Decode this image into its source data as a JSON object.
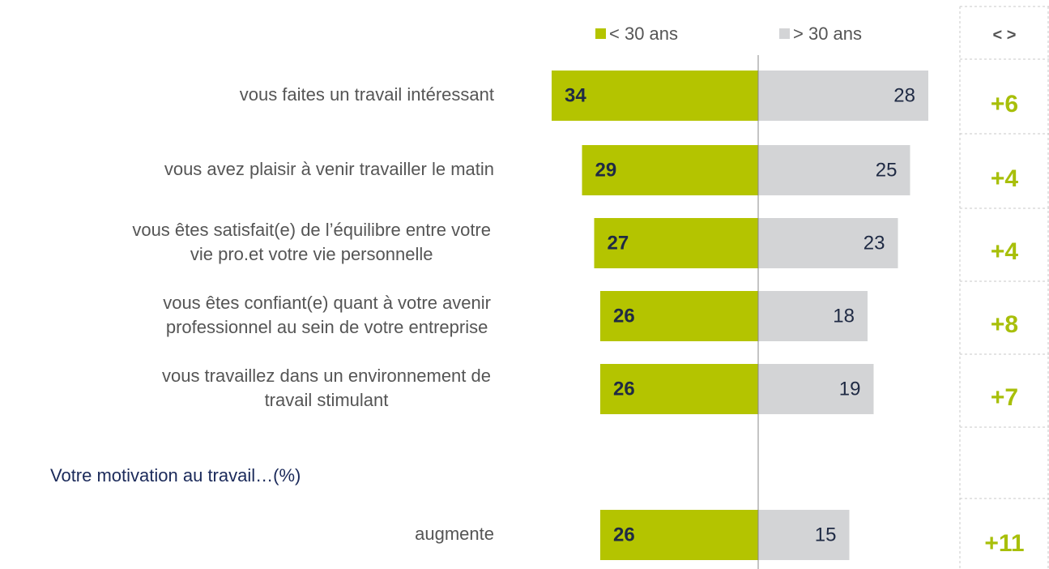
{
  "chart_data": {
    "type": "diverging-bar",
    "categories": [
      [
        "vous faites un travail intéressant"
      ],
      [
        "vous avez plaisir à venir travailler le matin"
      ],
      [
        "vous êtes satisfait(e) de l’équilibre entre votre",
        "vie pro.et votre vie personnelle"
      ],
      [
        "vous êtes confiant(e) quant à votre avenir",
        "professionnel au sein de votre entreprise"
      ],
      [
        "vous travaillez dans un environnement de",
        "travail stimulant"
      ],
      [
        "augmente"
      ]
    ],
    "section_label": "Votre motivation au travail…(%)",
    "series": [
      {
        "name": "< 30 ans",
        "color": "#b4c400",
        "values": [
          34,
          29,
          27,
          26,
          26,
          26
        ]
      },
      {
        "name": "> 30 ans",
        "color": "#d3d4d6",
        "values": [
          28,
          25,
          23,
          18,
          19,
          15
        ]
      }
    ],
    "difference": {
      "header": "< >",
      "color": "#a8bf0a",
      "values": [
        6,
        4,
        4,
        8,
        7,
        11
      ],
      "value_labels": [
        "+6",
        "+4",
        "+4",
        "+8",
        "+7",
        "+11"
      ]
    }
  }
}
